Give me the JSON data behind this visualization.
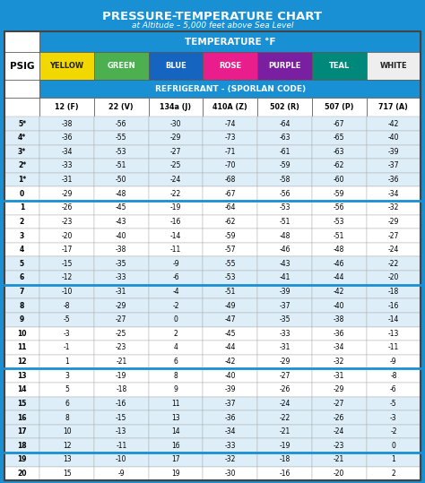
{
  "title1": "PRESSURE-TEMPERATURE CHART",
  "title2": "at Altitude – 5,000 feet above Sea Level",
  "temp_label": "TEMPERATURE °F",
  "refrigerant_label": "REFRIGERANT - (SPORLAN CODE)",
  "psig_label": "PSIG",
  "col_colors": [
    "YELLOW",
    "GREEN",
    "BLUE",
    "ROSE",
    "PURPLE",
    "TEAL",
    "WHITE"
  ],
  "col_codes": [
    "12 (F)",
    "22 (V)",
    "134a (J)",
    "410A (Z)",
    "502 (R)",
    "507 (P)",
    "717 (A)"
  ],
  "psig_values": [
    "5*",
    "4*",
    "3*",
    "2*",
    "1*",
    "0",
    "1",
    "2",
    "3",
    "4",
    "5",
    "6",
    "7",
    "8",
    "9",
    "10",
    "11",
    "12",
    "13",
    "14",
    "15",
    "16",
    "17",
    "18",
    "19",
    "20"
  ],
  "data": [
    [
      -38,
      -56,
      -30,
      -74,
      -64,
      -67,
      -42
    ],
    [
      -36,
      -55,
      -29,
      -73,
      -63,
      -65,
      -40
    ],
    [
      -34,
      -53,
      -27,
      -71,
      -61,
      -63,
      -39
    ],
    [
      -33,
      -51,
      -25,
      -70,
      -59,
      -62,
      -37
    ],
    [
      -31,
      -50,
      -24,
      -68,
      -58,
      -60,
      -36
    ],
    [
      -29,
      -48,
      -22,
      -67,
      -56,
      -59,
      -34
    ],
    [
      -26,
      -45,
      -19,
      -64,
      -53,
      -56,
      -32
    ],
    [
      -23,
      -43,
      -16,
      -62,
      -51,
      -53,
      -29
    ],
    [
      -20,
      -40,
      -14,
      -59,
      -48,
      -51,
      -27
    ],
    [
      -17,
      -38,
      -11,
      -57,
      -46,
      -48,
      -24
    ],
    [
      -15,
      -35,
      -9,
      -55,
      -43,
      -46,
      -22
    ],
    [
      -12,
      -33,
      -6,
      -53,
      -41,
      -44,
      -20
    ],
    [
      -10,
      -31,
      -4,
      -51,
      -39,
      -42,
      -18
    ],
    [
      -8,
      -29,
      -2,
      -49,
      -37,
      -40,
      -16
    ],
    [
      -5,
      -27,
      0,
      -47,
      -35,
      -38,
      -14
    ],
    [
      -3,
      -25,
      2,
      -45,
      -33,
      -36,
      -13
    ],
    [
      -1,
      -23,
      4,
      -44,
      -31,
      -34,
      -11
    ],
    [
      1,
      -21,
      6,
      -42,
      -29,
      -32,
      -9
    ],
    [
      3,
      -19,
      8,
      -40,
      -27,
      -31,
      -8
    ],
    [
      5,
      -18,
      9,
      -39,
      -26,
      -29,
      -6
    ],
    [
      6,
      -16,
      11,
      -37,
      -24,
      -27,
      -5
    ],
    [
      8,
      -15,
      13,
      -36,
      -22,
      -26,
      -3
    ],
    [
      10,
      -13,
      14,
      -34,
      -21,
      -24,
      -2
    ],
    [
      12,
      -11,
      16,
      -33,
      -19,
      -23,
      0
    ],
    [
      13,
      -10,
      17,
      -32,
      -18,
      -21,
      1
    ],
    [
      15,
      -9,
      19,
      -30,
      -16,
      -20,
      2
    ]
  ],
  "bg_color": "#1a90d4",
  "color_name_colors": {
    "YELLOW": "#f0d800",
    "GREEN": "#4caf50",
    "BLUE": "#1565c0",
    "ROSE": "#e91e8c",
    "PURPLE": "#7b1fa2",
    "TEAL": "#00897b",
    "WHITE": "#eeeeee"
  },
  "color_text_colors": {
    "YELLOW": "#222222",
    "GREEN": "#ffffff",
    "BLUE": "#ffffff",
    "ROSE": "#ffffff",
    "PURPLE": "#ffffff",
    "TEAL": "#ffffff",
    "WHITE": "#222222"
  }
}
